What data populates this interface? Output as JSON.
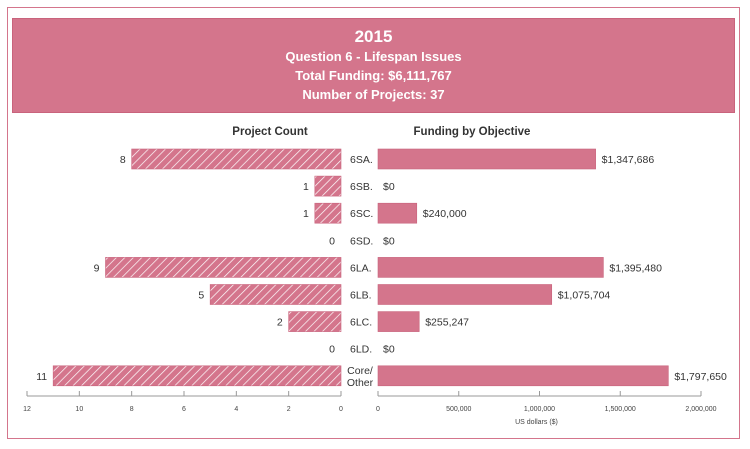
{
  "header": {
    "year": "2015",
    "question": "Question 6 - Lifespan Issues",
    "total_funding": "Total Funding: $6,111,767",
    "num_projects": "Number of Projects: 37"
  },
  "colors": {
    "accent": "#d4758c",
    "accent_border": "#c9637c",
    "text": "#333333",
    "axis": "#999999"
  },
  "chart_data": [
    {
      "type": "bar",
      "orientation": "horizontal",
      "direction": "right-to-left",
      "title": "Project Count",
      "categories": [
        "6SA.",
        "6SB.",
        "6SC.",
        "6SD.",
        "6LA.",
        "6LB.",
        "6LC.",
        "6LD.",
        "Core/ Other"
      ],
      "values": [
        8,
        1,
        1,
        0,
        9,
        5,
        2,
        0,
        11
      ],
      "data_labels": [
        "8",
        "1",
        "1",
        "0",
        "9",
        "5",
        "2",
        "0",
        "11"
      ],
      "xlabel": "",
      "xlim": [
        0,
        12
      ],
      "ticks": [
        12,
        10,
        8,
        6,
        4,
        2,
        0
      ],
      "fill": "hatched",
      "grid": false
    },
    {
      "type": "bar",
      "orientation": "horizontal",
      "direction": "left-to-right",
      "title": "Funding by Objective",
      "categories": [
        "6SA.",
        "6SB.",
        "6SC.",
        "6SD.",
        "6LA.",
        "6LB.",
        "6LC.",
        "6LD.",
        "Core/ Other"
      ],
      "values": [
        1347686,
        0,
        240000,
        0,
        1395480,
        1075704,
        255247,
        0,
        1797650
      ],
      "data_labels": [
        "$1,347,686",
        "$0",
        "$240,000",
        "$0",
        "$1,395,480",
        "$1,075,704",
        "$255,247",
        "$0",
        "$1,797,650"
      ],
      "xlabel": "US dollars ($)",
      "xlim": [
        0,
        2000000
      ],
      "ticks": [
        "0",
        "500,000",
        "1,000,000",
        "1,500,000",
        "2,000,000"
      ],
      "tick_values": [
        0,
        500000,
        1000000,
        1500000,
        2000000
      ],
      "fill": "solid",
      "grid": false
    }
  ]
}
